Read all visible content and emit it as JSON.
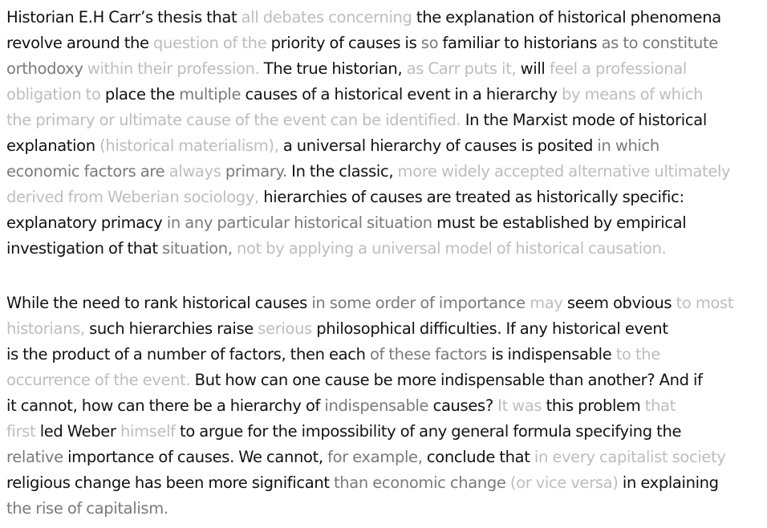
{
  "colors": {
    "dark": "#111111",
    "mid": "#7a7a7a",
    "light": "#bdbdbd"
  },
  "paragraphs": [
    [
      [
        [
          "d",
          "Historian"
        ],
        [
          "d",
          " E.H Carr’s thesis that "
        ],
        [
          "l",
          "all debates concerning"
        ],
        [
          "d",
          " the explanation of historical phenomena"
        ]
      ],
      [
        [
          "d",
          "revolve around the "
        ],
        [
          "l",
          "question of the"
        ],
        [
          "d",
          " priority of causes is "
        ],
        [
          "m",
          "so"
        ],
        [
          "d",
          " familiar to historians "
        ],
        [
          "m",
          "as to constitute"
        ]
      ],
      [
        [
          "m",
          "orthodoxy"
        ],
        [
          "l",
          " within their profession."
        ],
        [
          "d",
          " The true historian, "
        ],
        [
          "l",
          "as Carr puts it,"
        ],
        [
          "d",
          " will "
        ],
        [
          "l",
          "feel a professional"
        ]
      ],
      [
        [
          "l",
          "obligation to"
        ],
        [
          "d",
          " place the "
        ],
        [
          "m",
          "multiple"
        ],
        [
          "d",
          " causes of a historical event in a hierarchy "
        ],
        [
          "l",
          "by means of which"
        ]
      ],
      [
        [
          "l",
          "the primary "
        ],
        [
          "l",
          "or ultimate"
        ],
        [
          "l",
          " cause of the event can be identified."
        ],
        [
          "d",
          " In the Marxist mode of historical"
        ]
      ],
      [
        [
          "d",
          "explanation "
        ],
        [
          "l",
          "(historical materialism),"
        ],
        [
          "d",
          " a universal hierarchy of causes is posited "
        ],
        [
          "m",
          "in which"
        ]
      ],
      [
        [
          "m",
          "economic factors are "
        ],
        [
          "l",
          "always"
        ],
        [
          "m",
          " primary."
        ],
        [
          "d",
          " In the classic, "
        ],
        [
          "l",
          "more widely accepted alternative ultimately"
        ]
      ],
      [
        [
          "l",
          "derived from Weberian sociology,"
        ],
        [
          "d",
          " hierarchies of causes are treated as historically specific:"
        ]
      ],
      [
        [
          "d",
          "explanatory primacy "
        ],
        [
          "m",
          "in any particular historical situation"
        ],
        [
          "d",
          " must be established by empirical"
        ]
      ],
      [
        [
          "d",
          "investigation of that "
        ],
        [
          "m",
          "situation, "
        ],
        [
          "l",
          "not by applying a universal model of historical causation."
        ]
      ]
    ],
    [
      [
        [
          "d",
          "While the need to rank historical causes "
        ],
        [
          "m",
          "in some order of importance"
        ],
        [
          "l",
          " may"
        ],
        [
          "d",
          " seem obvious "
        ],
        [
          "l",
          "to most"
        ]
      ],
      [
        [
          "l",
          "historians,"
        ],
        [
          "d",
          " such hierarchies raise "
        ],
        [
          "l",
          "serious"
        ],
        [
          "d",
          " philosophical difficulties. If any historical event"
        ]
      ],
      [
        [
          "d",
          "is the product of a number of factors, then each "
        ],
        [
          "m",
          "of these factors"
        ],
        [
          "d",
          " is indispensable "
        ],
        [
          "l",
          "to the"
        ]
      ],
      [
        [
          "l",
          "occurrence of the event."
        ],
        [
          "d",
          " But how can one cause be more indispensable than another? And if"
        ]
      ],
      [
        [
          "d",
          "it cannot, how can there be a hierarchy of "
        ],
        [
          "m",
          "indispensable"
        ],
        [
          "d",
          " causes? "
        ],
        [
          "l",
          "It was"
        ],
        [
          "d",
          " this problem "
        ],
        [
          "l",
          "that"
        ]
      ],
      [
        [
          "l",
          "first"
        ],
        [
          "d",
          " led Weber "
        ],
        [
          "l",
          "himself"
        ],
        [
          "d",
          " to argue for the impossibility of any general formula specifying the"
        ]
      ],
      [
        [
          "m",
          "relative"
        ],
        [
          "d",
          " importance of causes. We cannot, "
        ],
        [
          "m",
          "for example,"
        ],
        [
          "d",
          " conclude that "
        ],
        [
          "l",
          "in every capitalist society"
        ]
      ],
      [
        [
          "d",
          "religious change has been more significant "
        ],
        [
          "m",
          "than economic change "
        ],
        [
          "l",
          "(or vice versa)"
        ],
        [
          "d",
          " in explaining"
        ]
      ],
      [
        [
          "m",
          "the rise of capitalism."
        ]
      ]
    ]
  ]
}
